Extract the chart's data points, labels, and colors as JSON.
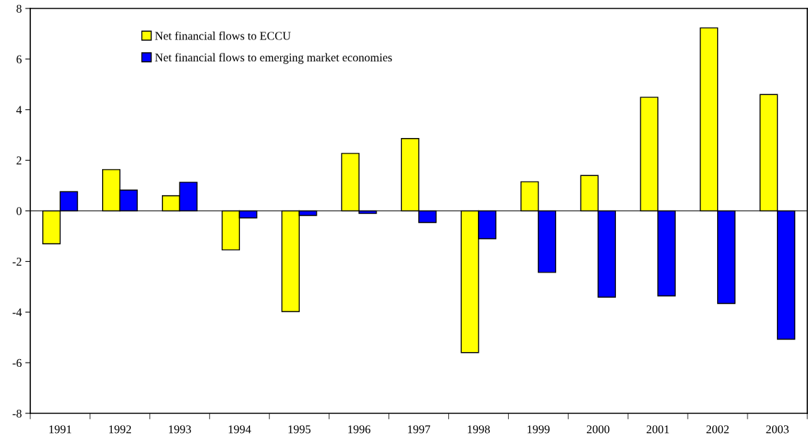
{
  "chart_data": {
    "type": "bar",
    "categories": [
      "1991",
      "1992",
      "1993",
      "1994",
      "1995",
      "1996",
      "1997",
      "1998",
      "1999",
      "2000",
      "2001",
      "2002",
      "2003"
    ],
    "series": [
      {
        "name": "Net financial flows to ECCU",
        "color": "#ffff00",
        "values": [
          -1.3,
          1.63,
          0.6,
          -1.54,
          -3.98,
          2.27,
          2.86,
          -5.6,
          1.15,
          1.4,
          4.49,
          7.23,
          4.6
        ]
      },
      {
        "name": "Net financial flows to emerging market economies",
        "color": "#0000ff",
        "values": [
          0.76,
          0.82,
          1.13,
          -0.28,
          -0.18,
          -0.1,
          -0.46,
          -1.1,
          -2.43,
          -3.41,
          -3.36,
          -3.66,
          -5.07
        ]
      }
    ],
    "ylim": [
      -8,
      8
    ],
    "yticks": [
      -8,
      -6,
      -4,
      -2,
      0,
      2,
      4,
      6,
      8
    ],
    "ref_lines": [
      {
        "axis": "y",
        "value": 0,
        "color": "#000000"
      }
    ],
    "grid": false,
    "legend": "top left"
  }
}
